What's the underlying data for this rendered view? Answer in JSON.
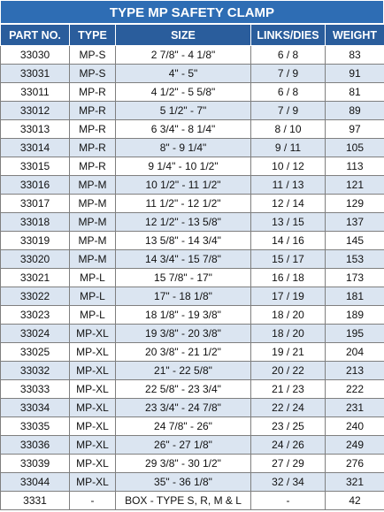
{
  "table": {
    "title": "TYPE MP SAFETY CLAMP",
    "header": [
      "PART NO.",
      "TYPE",
      "SIZE",
      "LINKS/DIES",
      "WEIGHT"
    ],
    "rows": [
      [
        "33030",
        "MP-S",
        "2 7/8\" - 4 1/8\"",
        "6 / 8",
        "83"
      ],
      [
        "33031",
        "MP-S",
        "4\" - 5\"",
        "7 / 9",
        "91"
      ],
      [
        "33011",
        "MP-R",
        "4 1/2\" - 5 5/8\"",
        "6 / 8",
        "81"
      ],
      [
        "33012",
        "MP-R",
        "5 1/2\" - 7\"",
        "7 / 9",
        "89"
      ],
      [
        "33013",
        "MP-R",
        "6 3/4\" - 8 1/4\"",
        "8 / 10",
        "97"
      ],
      [
        "33014",
        "MP-R",
        "8\" - 9 1/4\"",
        "9 / 11",
        "105"
      ],
      [
        "33015",
        "MP-R",
        "9 1/4\" - 10 1/2\"",
        "10 / 12",
        "113"
      ],
      [
        "33016",
        "MP-M",
        "10 1/2\" - 11 1/2\"",
        "11 / 13",
        "121"
      ],
      [
        "33017",
        "MP-M",
        "11 1/2\" - 12 1/2\"",
        "12 / 14",
        "129"
      ],
      [
        "33018",
        "MP-M",
        "12 1/2\" - 13 5/8\"",
        "13 / 15",
        "137"
      ],
      [
        "33019",
        "MP-M",
        "13 5/8\" - 14 3/4\"",
        "14 / 16",
        "145"
      ],
      [
        "33020",
        "MP-M",
        "14 3/4\" - 15 7/8\"",
        "15 / 17",
        "153"
      ],
      [
        "33021",
        "MP-L",
        "15 7/8\" - 17\"",
        "16 / 18",
        "173"
      ],
      [
        "33022",
        "MP-L",
        "17\" - 18 1/8\"",
        "17 / 19",
        "181"
      ],
      [
        "33023",
        "MP-L",
        "18 1/8\" - 19 3/8\"",
        "18 / 20",
        "189"
      ],
      [
        "33024",
        "MP-XL",
        "19 3/8\" - 20 3/8\"",
        "18 / 20",
        "195"
      ],
      [
        "33025",
        "MP-XL",
        "20 3/8\" - 21 1/2\"",
        "19 / 21",
        "204"
      ],
      [
        "33032",
        "MP-XL",
        "21\" - 22 5/8\"",
        "20 / 22",
        "213"
      ],
      [
        "33033",
        "MP-XL",
        "22 5/8\" - 23 3/4\"",
        "21 / 23",
        "222"
      ],
      [
        "33034",
        "MP-XL",
        "23 3/4\" - 24 7/8\"",
        "22 / 24",
        "231"
      ],
      [
        "33035",
        "MP-XL",
        "24 7/8\" - 26\"",
        "23 / 25",
        "240"
      ],
      [
        "33036",
        "MP-XL",
        "26\" - 27 1/8\"",
        "24 / 26",
        "249"
      ],
      [
        "33039",
        "MP-XL",
        "29 3/8\" - 30 1/2\"",
        "27 / 29",
        "276"
      ],
      [
        "33044",
        "MP-XL",
        "35\" - 36 1/8\"",
        "32 / 34",
        "321"
      ],
      [
        "3331",
        "-",
        "BOX - TYPE S, R, M & L",
        "-",
        "42"
      ]
    ]
  }
}
